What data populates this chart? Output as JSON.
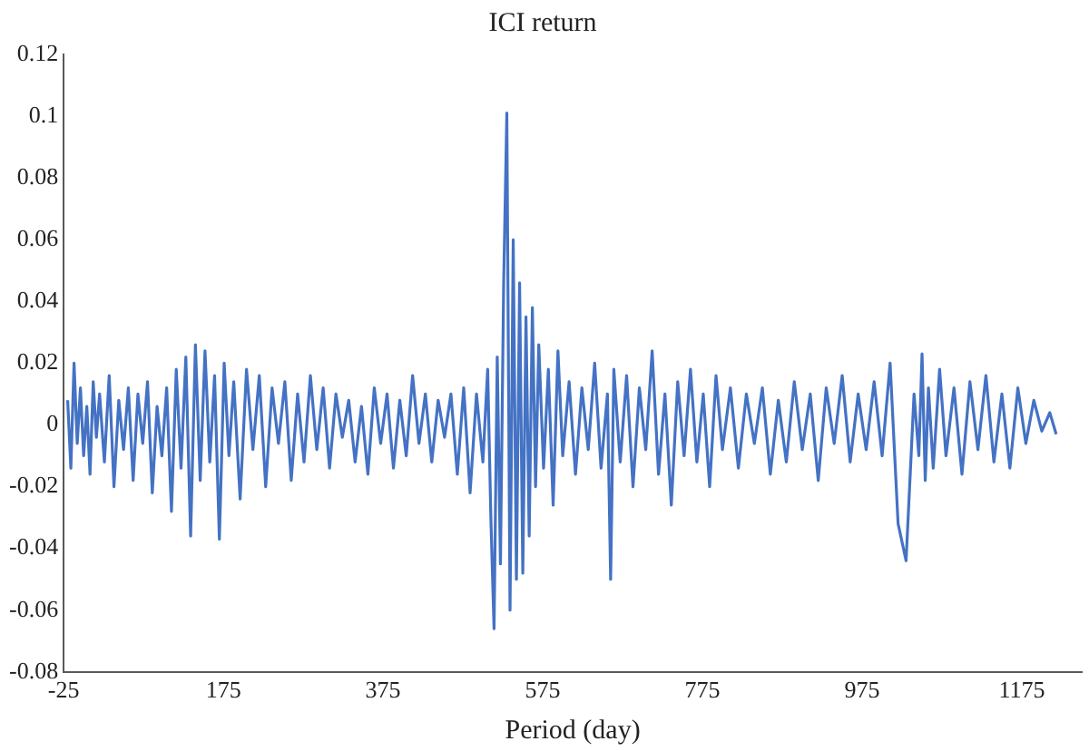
{
  "chart_data": {
    "type": "line",
    "title": "ICI return",
    "xlabel": "Period (day)",
    "xlim": [
      -25,
      1250
    ],
    "xticks": [
      -25,
      175,
      375,
      575,
      775,
      975,
      1175
    ],
    "ylim": [
      -0.08,
      0.12
    ],
    "yticks": [
      -0.08,
      -0.06,
      -0.04,
      -0.02,
      0,
      0.02,
      0.04,
      0.06,
      0.08,
      0.1,
      0.12
    ],
    "grid": false,
    "legend": false,
    "marker": "none",
    "line_style": "solid",
    "series": [
      {
        "color": "#4472c4",
        "x": [
          -20,
          -16,
          -12,
          -8,
          -4,
          0,
          4,
          8,
          12,
          16,
          20,
          26,
          32,
          38,
          44,
          50,
          56,
          62,
          68,
          74,
          80,
          86,
          92,
          98,
          104,
          110,
          116,
          122,
          128,
          134,
          140,
          146,
          152,
          158,
          164,
          170,
          176,
          182,
          188,
          196,
          204,
          212,
          220,
          228,
          236,
          244,
          252,
          260,
          268,
          276,
          284,
          292,
          300,
          308,
          316,
          324,
          332,
          340,
          348,
          356,
          364,
          372,
          380,
          388,
          396,
          404,
          412,
          420,
          428,
          436,
          444,
          452,
          460,
          468,
          476,
          484,
          492,
          500,
          506,
          510,
          514,
          518,
          522,
          526,
          530,
          534,
          538,
          542,
          546,
          550,
          554,
          558,
          562,
          566,
          570,
          576,
          582,
          588,
          594,
          600,
          608,
          616,
          624,
          632,
          640,
          648,
          656,
          660,
          664,
          672,
          680,
          688,
          696,
          704,
          712,
          720,
          728,
          736,
          744,
          752,
          760,
          768,
          776,
          784,
          792,
          800,
          810,
          820,
          830,
          840,
          850,
          860,
          870,
          880,
          890,
          900,
          910,
          920,
          930,
          940,
          950,
          960,
          970,
          980,
          990,
          1000,
          1010,
          1020,
          1030,
          1040,
          1046,
          1050,
          1054,
          1058,
          1064,
          1072,
          1080,
          1090,
          1100,
          1110,
          1120,
          1130,
          1140,
          1150,
          1160,
          1170,
          1180,
          1190,
          1200,
          1210,
          1218
        ],
        "values": [
          0.008,
          -0.014,
          0.02,
          -0.006,
          0.012,
          -0.01,
          0.006,
          -0.016,
          0.014,
          -0.004,
          0.01,
          -0.012,
          0.016,
          -0.02,
          0.008,
          -0.008,
          0.012,
          -0.018,
          0.01,
          -0.006,
          0.014,
          -0.022,
          0.006,
          -0.01,
          0.012,
          -0.028,
          0.018,
          -0.014,
          0.022,
          -0.036,
          0.026,
          -0.018,
          0.024,
          -0.012,
          0.016,
          -0.037,
          0.02,
          -0.01,
          0.014,
          -0.024,
          0.018,
          -0.008,
          0.016,
          -0.02,
          0.012,
          -0.006,
          0.014,
          -0.018,
          0.01,
          -0.012,
          0.016,
          -0.008,
          0.012,
          -0.014,
          0.01,
          -0.004,
          0.008,
          -0.012,
          0.006,
          -0.016,
          0.012,
          -0.006,
          0.01,
          -0.014,
          0.008,
          -0.01,
          0.016,
          -0.006,
          0.01,
          -0.012,
          0.008,
          -0.004,
          0.01,
          -0.016,
          0.012,
          -0.022,
          0.01,
          -0.012,
          0.018,
          -0.03,
          -0.066,
          0.022,
          -0.045,
          0.045,
          0.101,
          -0.06,
          0.06,
          -0.05,
          0.046,
          -0.048,
          0.035,
          -0.036,
          0.038,
          -0.02,
          0.026,
          -0.014,
          0.018,
          -0.026,
          0.024,
          -0.01,
          0.014,
          -0.016,
          0.012,
          -0.008,
          0.02,
          -0.014,
          0.01,
          -0.05,
          0.018,
          -0.012,
          0.016,
          -0.02,
          0.012,
          -0.008,
          0.024,
          -0.016,
          0.01,
          -0.026,
          0.014,
          -0.01,
          0.018,
          -0.012,
          0.01,
          -0.02,
          0.016,
          -0.008,
          0.012,
          -0.014,
          0.01,
          -0.006,
          0.012,
          -0.016,
          0.008,
          -0.012,
          0.014,
          -0.008,
          0.01,
          -0.018,
          0.012,
          -0.006,
          0.016,
          -0.012,
          0.01,
          -0.008,
          0.014,
          -0.01,
          0.02,
          -0.032,
          -0.044,
          0.01,
          -0.01,
          0.023,
          -0.018,
          0.012,
          -0.014,
          0.018,
          -0.01,
          0.012,
          -0.016,
          0.014,
          -0.008,
          0.016,
          -0.012,
          0.01,
          -0.014,
          0.012,
          -0.006,
          0.008,
          -0.002,
          0.004,
          -0.003
        ]
      }
    ]
  }
}
